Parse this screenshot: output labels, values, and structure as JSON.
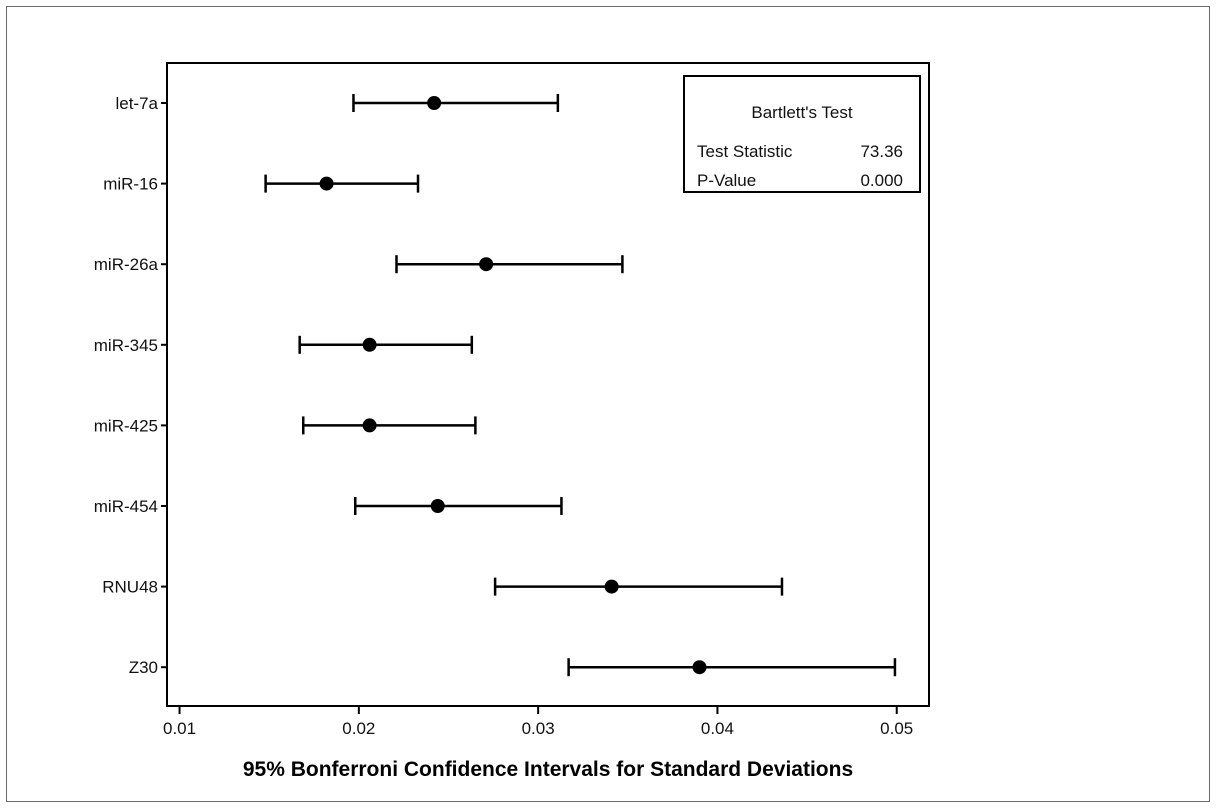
{
  "chart_data": {
    "type": "interval",
    "categories": [
      "let-7a",
      "miR-16",
      "miR-26a",
      "miR-345",
      "miR-425",
      "miR-454",
      "RNU48",
      "Z30"
    ],
    "estimates": [
      0.0242,
      0.0182,
      0.0271,
      0.0206,
      0.0206,
      0.0244,
      0.0341,
      0.039
    ],
    "lower": [
      0.0197,
      0.0148,
      0.0221,
      0.0167,
      0.0169,
      0.0198,
      0.0276,
      0.0317
    ],
    "upper": [
      0.0311,
      0.0233,
      0.0347,
      0.0263,
      0.0265,
      0.0313,
      0.0436,
      0.0499
    ],
    "xlabel": "95% Bonferroni Confidence Intervals for Standard Deviations",
    "xlim": [
      0.0093,
      0.0518
    ],
    "xticks": [
      0.01,
      0.02,
      0.03,
      0.04,
      0.05
    ],
    "xtick_labels": [
      "0.01",
      "0.02",
      "0.03",
      "0.04",
      "0.05"
    ],
    "grid": false,
    "legend_position": "top-right",
    "test_box": {
      "title": "Bartlett's Test",
      "stat_label": "Test Statistic",
      "stat_value": "73.36",
      "p_label": "P-Value",
      "p_value": "0.000"
    }
  }
}
